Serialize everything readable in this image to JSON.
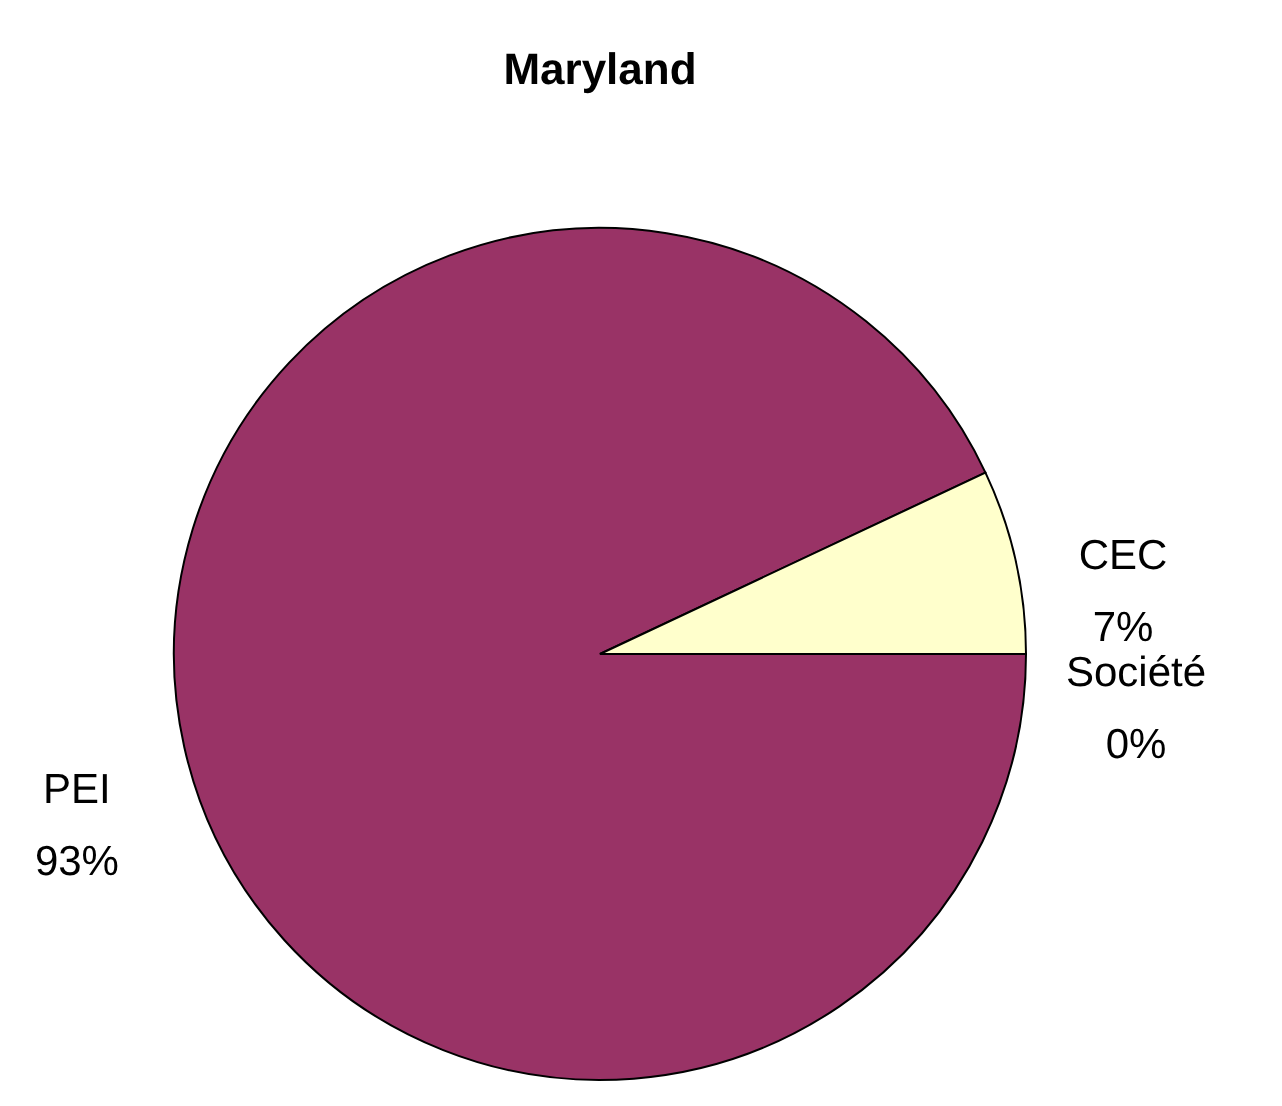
{
  "chart_data": {
    "type": "pie",
    "title": "Maryland",
    "categories": [
      "Société",
      "PEI",
      "CEC"
    ],
    "values": [
      0,
      93,
      7
    ],
    "colors": [
      "#ffffff",
      "#993366",
      "#ffffcc"
    ],
    "value_labels": [
      "0%",
      "93%",
      "7%"
    ],
    "legend": false
  }
}
